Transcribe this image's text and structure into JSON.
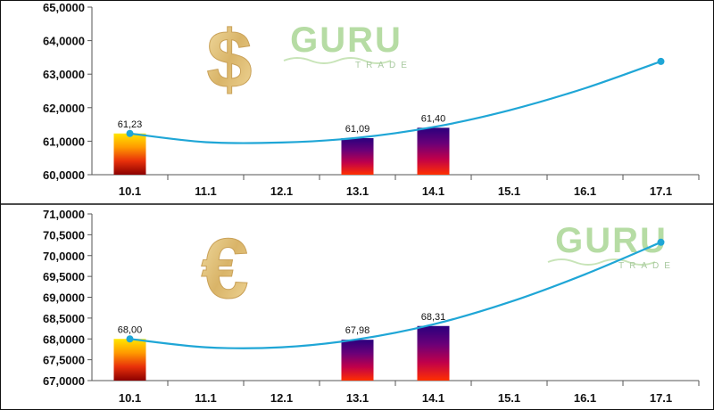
{
  "watermark": {
    "brand": "GURU",
    "sub": "TRADE"
  },
  "symbols": {
    "dollar": "$",
    "euro": "€"
  },
  "colors": {
    "line": "#1fa6d6",
    "marker": "#1fa6d6",
    "up_bar": [
      "#8b0000",
      "#e8300a",
      "#ff9a00",
      "#ffe600"
    ],
    "down_bar": [
      "#ff3000",
      "#c0004a",
      "#6a0078",
      "#2a007e"
    ],
    "watermark": "#b6dca4",
    "currency_gold": "#e2c27a"
  },
  "chart_data": [
    {
      "type": "bar",
      "symbol": "dollar-symbol",
      "categories": [
        "10.1",
        "11.1",
        "12.1",
        "13.1",
        "14.1",
        "15.1",
        "16.1",
        "17.1"
      ],
      "bars": [
        {
          "category": "10.1",
          "value": 61.23,
          "label": "61,23",
          "style": "up"
        },
        {
          "category": "13.1",
          "value": 61.09,
          "label": "61,09",
          "style": "down"
        },
        {
          "category": "14.1",
          "value": 61.4,
          "label": "61,40",
          "style": "down"
        }
      ],
      "trend_line": {
        "x": [
          "10.1",
          "11.1",
          "12.1",
          "13.1",
          "14.1",
          "15.1",
          "16.1",
          "17.1"
        ],
        "values": [
          61.23,
          60.97,
          60.96,
          61.1,
          61.42,
          61.92,
          62.58,
          63.38
        ],
        "markers": [
          "10.1",
          "17.1"
        ]
      },
      "ylim": [
        60,
        65
      ],
      "yticks": [
        {
          "value": 60,
          "label": "60,0000"
        },
        {
          "value": 61,
          "label": "61,0000"
        },
        {
          "value": 62,
          "label": "62,0000"
        },
        {
          "value": 63,
          "label": "63,0000"
        },
        {
          "value": 64,
          "label": "64,0000"
        },
        {
          "value": 65,
          "label": "65,0000"
        }
      ],
      "grid": false
    },
    {
      "type": "bar",
      "symbol": "euro-symbol",
      "categories": [
        "10.1",
        "11.1",
        "12.1",
        "13.1",
        "14.1",
        "15.1",
        "16.1",
        "17.1"
      ],
      "bars": [
        {
          "category": "10.1",
          "value": 68.0,
          "label": "68,00",
          "style": "up"
        },
        {
          "category": "13.1",
          "value": 67.98,
          "label": "67,98",
          "style": "down"
        },
        {
          "category": "14.1",
          "value": 68.31,
          "label": "68,31",
          "style": "down"
        }
      ],
      "trend_line": {
        "x": [
          "10.1",
          "11.1",
          "12.1",
          "13.1",
          "14.1",
          "15.1",
          "16.1",
          "17.1"
        ],
        "values": [
          68.0,
          67.8,
          67.8,
          67.99,
          68.35,
          68.88,
          69.55,
          70.32
        ],
        "markers": [
          "10.1",
          "17.1"
        ]
      },
      "ylim": [
        67,
        71
      ],
      "yticks": [
        {
          "value": 67,
          "label": "67,0000"
        },
        {
          "value": 67.5,
          "label": "67,5000"
        },
        {
          "value": 68,
          "label": "68,0000"
        },
        {
          "value": 68.5,
          "label": "68,5000"
        },
        {
          "value": 69,
          "label": "69,0000"
        },
        {
          "value": 69.5,
          "label": "69,5000"
        },
        {
          "value": 70,
          "label": "70,0000"
        },
        {
          "value": 70.5,
          "label": "70,5000"
        },
        {
          "value": 71,
          "label": "71,0000"
        }
      ],
      "grid": false
    }
  ]
}
